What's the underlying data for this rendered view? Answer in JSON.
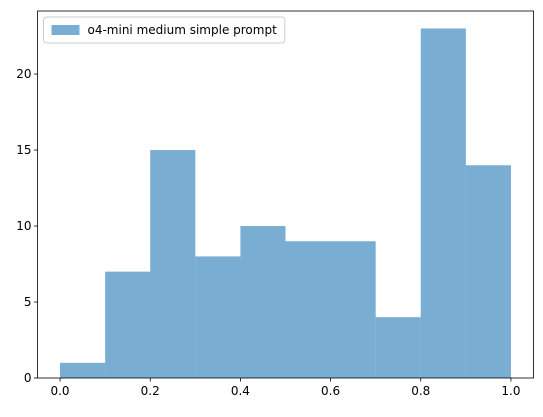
{
  "chart_data": {
    "type": "histogram",
    "bins": [
      0,
      0.1,
      0.2,
      0.3,
      0.4,
      0.5,
      0.6,
      0.7,
      0.8,
      0.9,
      1.0
    ],
    "series": [
      {
        "name": "o4-mini medium simple prompt",
        "color": "#1f77b4",
        "alpha": 0.6,
        "values": [
          1,
          7,
          15,
          8,
          10,
          9,
          9,
          4,
          23,
          14
        ]
      }
    ],
    "xlim": [
      -0.05,
      1.05
    ],
    "xticks": [
      {
        "value": 0,
        "label": "0.0"
      },
      {
        "value": 0.2,
        "label": "0.2"
      },
      {
        "value": 0.4,
        "label": "0.4"
      },
      {
        "value": 0.6,
        "label": "0.6"
      },
      {
        "value": 0.8,
        "label": "0.8"
      },
      {
        "value": 1,
        "label": "1.0"
      }
    ],
    "ylim": [
      0,
      24.15
    ],
    "yticks": [
      0,
      5,
      10,
      15,
      20
    ],
    "legend": "upper left"
  }
}
